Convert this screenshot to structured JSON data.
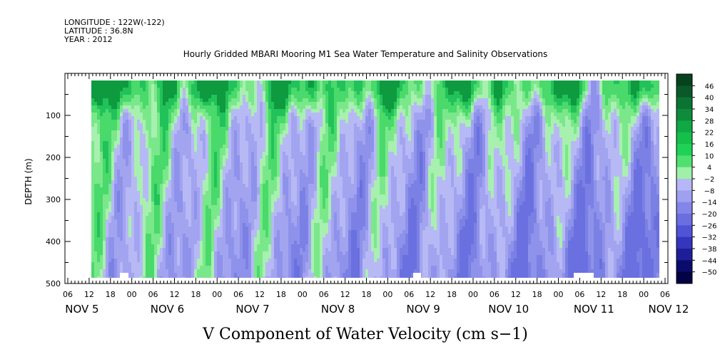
{
  "header": {
    "longitude_line": "LONGITUDE : 122W(-122)",
    "latitude_line": "LATITUDE : 36.8N",
    "year_line": "YEAR : 2012"
  },
  "chart_data": {
    "type": "heatmap",
    "title": "Hourly Gridded MBARI Mooring M1 Sea Water Temperature and Salinity Observations",
    "xlabel": "V Component of Water Velocity (cm s−1)",
    "ylabel": "DEPTH (m)",
    "x_range": [
      "2012-11-05T06:00",
      "2012-11-12T06:00"
    ],
    "ylim": [
      500,
      0
    ],
    "y_ticks": [
      100,
      200,
      300,
      400,
      500
    ],
    "x_hour_ticks": [
      "06",
      "12",
      "18",
      "00",
      "06",
      "12",
      "18",
      "00",
      "06",
      "12",
      "18",
      "00",
      "06",
      "12",
      "18",
      "00",
      "06",
      "12",
      "18",
      "00",
      "06",
      "12",
      "18",
      "00",
      "06",
      "12",
      "18",
      "00",
      "06"
    ],
    "x_day_labels": [
      "NOV  5",
      "NOV  6",
      "NOV  7",
      "NOV  8",
      "NOV  9",
      "NOV 10",
      "NOV 11",
      "NOV 12"
    ],
    "colorbar_labels": [
      "46",
      "40",
      "34",
      "28",
      "22",
      "16",
      "10",
      "4",
      "−2",
      "−8",
      "−14",
      "−20",
      "−26",
      "−32",
      "−38",
      "−44",
      "−50"
    ],
    "colorbar_colors": [
      "#07421e",
      "#0a5a29",
      "#0c7433",
      "#0e8c3c",
      "#10a845",
      "#14bf4a",
      "#1ed257",
      "#4fe06f",
      "#9ff0a9",
      "#b6b7f6",
      "#9fa0ef",
      "#8485e9",
      "#6b6edf",
      "#4f54d6",
      "#3436bd",
      "#1e1f98",
      "#0b0b6b",
      "#020244"
    ],
    "grid": false,
    "legend": "right",
    "summary_pattern": [
      {
        "day": "NOV 5",
        "surface": "positive",
        "deep": "negative"
      },
      {
        "day": "NOV 6",
        "surface": "positive",
        "deep": "mixed"
      },
      {
        "day": "NOV 7",
        "surface": "positive",
        "deep": "mixed"
      },
      {
        "day": "NOV 8",
        "surface": "positive",
        "deep": "negative"
      },
      {
        "day": "NOV 9",
        "surface": "positive",
        "deep": "negative"
      },
      {
        "day": "NOV 10",
        "surface": "mixed",
        "deep": "negative"
      },
      {
        "day": "NOV 11",
        "surface": "positive",
        "deep": "negative"
      }
    ]
  }
}
